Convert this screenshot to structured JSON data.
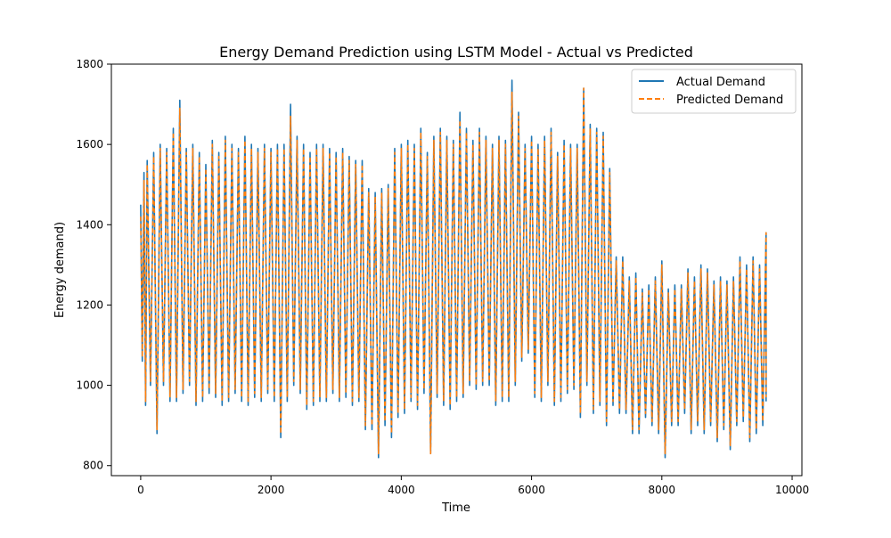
{
  "chart_data": {
    "type": "line",
    "title": "Energy Demand Prediction using LSTM Model - Actual vs Predicted",
    "xlabel": "Time",
    "ylabel": "Energy demand)",
    "xlim": [
      -450,
      10150
    ],
    "ylim": [
      775,
      1800
    ],
    "xticks": [
      0,
      2000,
      4000,
      6000,
      8000,
      10000
    ],
    "xtick_labels": [
      "0",
      "2000",
      "4000",
      "6000",
      "8000",
      "10000"
    ],
    "yticks": [
      800,
      1000,
      1200,
      1400,
      1600,
      1800
    ],
    "ytick_labels": [
      "800",
      "1000",
      "1200",
      "1400",
      "1600",
      "1800"
    ],
    "grid": false,
    "legend_position": "top-right",
    "series": [
      {
        "name": "Actual Demand",
        "color": "#1f77b4",
        "style": "solid",
        "x": [
          0,
          50,
          100,
          200,
          300,
          400,
          500,
          600,
          700,
          800,
          900,
          1000,
          1100,
          1200,
          1300,
          1400,
          1500,
          1600,
          1700,
          1800,
          1900,
          2000,
          2100,
          2200,
          2300,
          2400,
          2500,
          2600,
          2700,
          2800,
          2900,
          3000,
          3100,
          3200,
          3300,
          3400,
          3500,
          3600,
          3700,
          3800,
          3900,
          4000,
          4100,
          4200,
          4300,
          4400,
          4500,
          4600,
          4700,
          4800,
          4900,
          5000,
          5100,
          5200,
          5300,
          5400,
          5500,
          5600,
          5700,
          5800,
          5900,
          6000,
          6100,
          6200,
          6300,
          6400,
          6500,
          6600,
          6700,
          6800,
          6900,
          7000,
          7100,
          7200,
          7300,
          7400,
          7500,
          7600,
          7700,
          7800,
          7900,
          8000,
          8100,
          8200,
          8300,
          8400,
          8500,
          8600,
          8700,
          8800,
          8900,
          9000,
          9100,
          9200,
          9300,
          9400,
          9500,
          9600
        ],
        "high": [
          1450,
          1530,
          1560,
          1580,
          1600,
          1590,
          1640,
          1710,
          1590,
          1600,
          1580,
          1550,
          1610,
          1580,
          1620,
          1600,
          1590,
          1620,
          1600,
          1590,
          1600,
          1590,
          1600,
          1600,
          1700,
          1620,
          1600,
          1580,
          1600,
          1600,
          1590,
          1580,
          1590,
          1570,
          1560,
          1560,
          1490,
          1480,
          1490,
          1500,
          1590,
          1600,
          1610,
          1600,
          1640,
          1580,
          1620,
          1640,
          1620,
          1610,
          1680,
          1640,
          1610,
          1640,
          1620,
          1600,
          1620,
          1610,
          1760,
          1680,
          1600,
          1620,
          1600,
          1620,
          1640,
          1580,
          1610,
          1600,
          1600,
          1740,
          1650,
          1640,
          1630,
          1540,
          1320,
          1320,
          1270,
          1280,
          1240,
          1250,
          1270,
          1310,
          1240,
          1250,
          1250,
          1290,
          1270,
          1300,
          1290,
          1260,
          1270,
          1260,
          1270,
          1320,
          1300,
          1320,
          1300,
          1380
        ],
        "low": [
          1060,
          950,
          1000,
          880,
          1000,
          960,
          960,
          980,
          1000,
          950,
          960,
          980,
          970,
          950,
          960,
          980,
          960,
          950,
          970,
          960,
          980,
          960,
          870,
          960,
          1000,
          980,
          940,
          950,
          960,
          960,
          980,
          960,
          970,
          950,
          960,
          890,
          890,
          820,
          900,
          870,
          920,
          930,
          960,
          940,
          980,
          830,
          970,
          950,
          940,
          960,
          970,
          1000,
          990,
          1000,
          1000,
          950,
          960,
          960,
          1000,
          1060,
          1080,
          970,
          960,
          1000,
          950,
          960,
          980,
          990,
          920,
          1000,
          930,
          950,
          900,
          950,
          930,
          930,
          880,
          880,
          920,
          900,
          880,
          820,
          900,
          900,
          930,
          880,
          900,
          880,
          900,
          860,
          890,
          840,
          900,
          910,
          860,
          880,
          900,
          960
        ]
      },
      {
        "name": "Predicted Demand",
        "color": "#ff7f0e",
        "style": "dashed",
        "x": [
          0,
          50,
          100,
          200,
          300,
          400,
          500,
          600,
          700,
          800,
          900,
          1000,
          1100,
          1200,
          1300,
          1400,
          1500,
          1600,
          1700,
          1800,
          1900,
          2000,
          2100,
          2200,
          2300,
          2400,
          2500,
          2600,
          2700,
          2800,
          2900,
          3000,
          3100,
          3200,
          3300,
          3400,
          3500,
          3600,
          3700,
          3800,
          3900,
          4000,
          4100,
          4200,
          4300,
          4400,
          4500,
          4600,
          4700,
          4800,
          4900,
          5000,
          5100,
          5200,
          5300,
          5400,
          5500,
          5600,
          5700,
          5800,
          5900,
          6000,
          6100,
          6200,
          6300,
          6400,
          6500,
          6600,
          6700,
          6800,
          6900,
          7000,
          7100,
          7200,
          7300,
          7400,
          7500,
          7600,
          7700,
          7800,
          7900,
          8000,
          8100,
          8200,
          8300,
          8400,
          8500,
          8600,
          8700,
          8800,
          8900,
          9000,
          9100,
          9200,
          9300,
          9400,
          9500,
          9600
        ],
        "high": [
          1420,
          1510,
          1550,
          1570,
          1590,
          1580,
          1630,
          1690,
          1580,
          1590,
          1570,
          1540,
          1600,
          1570,
          1610,
          1590,
          1580,
          1610,
          1590,
          1580,
          1590,
          1580,
          1590,
          1590,
          1670,
          1610,
          1590,
          1570,
          1590,
          1590,
          1580,
          1570,
          1580,
          1560,
          1550,
          1550,
          1480,
          1470,
          1480,
          1490,
          1580,
          1590,
          1600,
          1590,
          1630,
          1570,
          1610,
          1630,
          1610,
          1600,
          1660,
          1630,
          1600,
          1630,
          1610,
          1590,
          1610,
          1600,
          1730,
          1670,
          1590,
          1610,
          1590,
          1610,
          1630,
          1570,
          1600,
          1590,
          1590,
          1740,
          1640,
          1630,
          1620,
          1530,
          1310,
          1310,
          1260,
          1270,
          1230,
          1240,
          1260,
          1300,
          1230,
          1240,
          1240,
          1280,
          1260,
          1290,
          1280,
          1250,
          1260,
          1250,
          1260,
          1310,
          1290,
          1310,
          1290,
          1380
        ],
        "low": [
          1070,
          960,
          1010,
          890,
          1010,
          970,
          970,
          990,
          1010,
          960,
          970,
          990,
          980,
          960,
          970,
          990,
          970,
          960,
          980,
          970,
          990,
          970,
          880,
          970,
          1010,
          990,
          950,
          960,
          970,
          970,
          990,
          970,
          980,
          960,
          970,
          900,
          900,
          830,
          910,
          880,
          930,
          940,
          970,
          950,
          990,
          830,
          980,
          960,
          950,
          970,
          980,
          1010,
          1000,
          1010,
          1010,
          960,
          970,
          970,
          1010,
          1070,
          1090,
          980,
          970,
          1010,
          960,
          970,
          990,
          1000,
          930,
          1010,
          940,
          960,
          910,
          960,
          940,
          940,
          890,
          890,
          930,
          910,
          890,
          830,
          910,
          910,
          940,
          890,
          910,
          890,
          910,
          870,
          900,
          850,
          910,
          920,
          870,
          890,
          910,
          970
        ]
      }
    ]
  }
}
